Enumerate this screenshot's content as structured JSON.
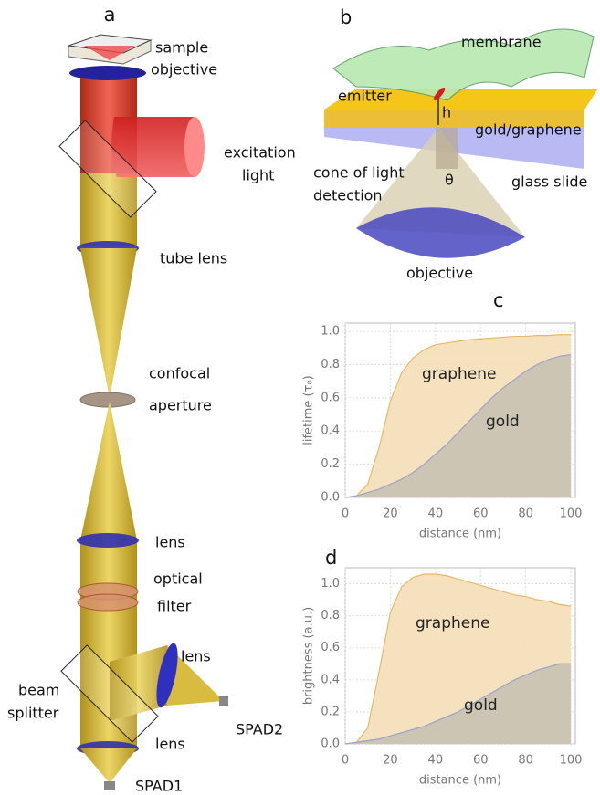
{
  "panel_a": {
    "label": "a",
    "texts": [
      "sample",
      "objective",
      "excitation",
      "light",
      "tube lens",
      "confocal",
      "aperture",
      "lens",
      "optical",
      "filter",
      "lens",
      "beam",
      "splitter",
      "lens",
      "SPAD2",
      "SPAD1"
    ]
  },
  "panel_b": {
    "label": "b",
    "texts": [
      "membrane",
      "emitter",
      "h",
      "gold/graphene",
      "cone of light",
      "detection",
      "θ",
      "glass slide",
      "objective"
    ]
  },
  "chart_data": [
    {
      "type": "area",
      "panel_label": "c",
      "x_label": "distance (nm)",
      "y_label": "lifetime (τ₀)",
      "x": [
        0,
        5,
        10,
        15,
        20,
        25,
        30,
        35,
        40,
        45,
        50,
        55,
        60,
        65,
        70,
        75,
        80,
        85,
        90,
        95,
        100
      ],
      "series": [
        {
          "name": "graphene",
          "color": "#f5deb8",
          "values": [
            0,
            0.01,
            0.08,
            0.3,
            0.58,
            0.75,
            0.84,
            0.89,
            0.92,
            0.93,
            0.94,
            0.95,
            0.955,
            0.96,
            0.965,
            0.97,
            0.97,
            0.975,
            0.975,
            0.98,
            0.98
          ]
        },
        {
          "name": "gold",
          "color": "#c8c2b2",
          "values": [
            0,
            0.01,
            0.03,
            0.05,
            0.08,
            0.11,
            0.15,
            0.2,
            0.26,
            0.32,
            0.39,
            0.46,
            0.53,
            0.6,
            0.66,
            0.71,
            0.76,
            0.8,
            0.83,
            0.85,
            0.86
          ]
        }
      ],
      "xlim": [
        0,
        102
      ],
      "xticks": [
        0,
        20,
        40,
        60,
        80,
        100
      ],
      "ylim": [
        0,
        1.05
      ],
      "yticks": [
        {
          "value": 0,
          "label": "0.0"
        },
        0.2,
        0.4,
        0.6,
        0.8,
        {
          "value": 1,
          "label": "1.0"
        }
      ],
      "grid": true
    },
    {
      "type": "area",
      "panel_label": "d",
      "x_label": "distance (nm)",
      "y_label": "brightness (a.u.)",
      "x": [
        0,
        5,
        10,
        15,
        20,
        25,
        30,
        35,
        40,
        45,
        50,
        55,
        60,
        65,
        70,
        75,
        80,
        85,
        90,
        95,
        100
      ],
      "series": [
        {
          "name": "graphene",
          "color": "#f5deb8",
          "values": [
            0,
            0.01,
            0.1,
            0.45,
            0.82,
            0.98,
            1.04,
            1.06,
            1.06,
            1.05,
            1.03,
            1.01,
            0.99,
            0.97,
            0.95,
            0.93,
            0.92,
            0.9,
            0.89,
            0.87,
            0.86
          ]
        },
        {
          "name": "gold",
          "color": "#c8c2b2",
          "values": [
            0,
            0.01,
            0.02,
            0.03,
            0.05,
            0.07,
            0.09,
            0.11,
            0.14,
            0.17,
            0.2,
            0.24,
            0.28,
            0.32,
            0.36,
            0.4,
            0.43,
            0.46,
            0.48,
            0.5,
            0.5
          ]
        }
      ],
      "xlim": [
        0,
        102
      ],
      "xticks": [
        0,
        20,
        40,
        60,
        80,
        100
      ],
      "ylim": [
        0,
        1.1
      ],
      "yticks": [
        {
          "value": 0,
          "label": "0.0"
        },
        0.2,
        0.4,
        0.6,
        0.8,
        {
          "value": 1,
          "label": "1.0"
        }
      ],
      "grid": true
    }
  ]
}
